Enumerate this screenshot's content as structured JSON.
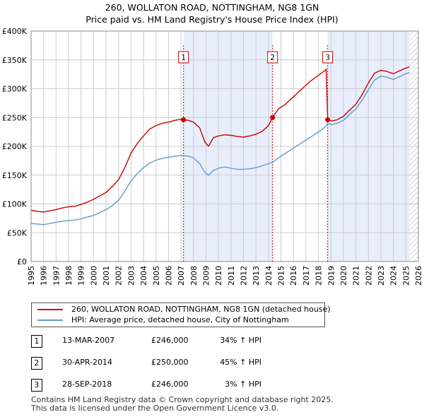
{
  "header": {
    "line1": "260, WOLLATON ROAD, NOTTINGHAM, NG8 1GN",
    "line2": "Price paid vs. HM Land Registry's House Price Index (HPI)"
  },
  "colors": {
    "property": "#cc0000",
    "hpi": "#6699cc",
    "shade": "#e8eefb",
    "grid": "#cccccc",
    "hatch": "#aaaaaa"
  },
  "legend": {
    "property_label": "260, WOLLATON ROAD, NOTTINGHAM, NG8 1GN (detached house)",
    "hpi_label": "HPI: Average price, detached house, City of Nottingham"
  },
  "sales": [
    {
      "num": "1",
      "date": "13-MAR-2007",
      "price": "£246,000",
      "hpi": "34% ↑ HPI"
    },
    {
      "num": "2",
      "date": "30-APR-2014",
      "price": "£250,000",
      "hpi": "45% ↑ HPI"
    },
    {
      "num": "3",
      "date": "28-SEP-2018",
      "price": "£246,000",
      "hpi": "3% ↑ HPI"
    }
  ],
  "footer": {
    "line1": "Contains HM Land Registry data © Crown copyright and database right 2025.",
    "line2": "This data is licensed under the Open Government Licence v3.0."
  },
  "chart_data": {
    "type": "line",
    "title": "260, WOLLATON ROAD, NOTTINGHAM, NG8 1GN",
    "subtitle": "Price paid vs. HM Land Registry's House Price Index (HPI)",
    "xlim": [
      1995,
      2026
    ],
    "ylim": [
      0,
      400000
    ],
    "x_ticks": [
      "1995",
      "1996",
      "1997",
      "1998",
      "1999",
      "2000",
      "2001",
      "2002",
      "2003",
      "2004",
      "2005",
      "2006",
      "2007",
      "2008",
      "2009",
      "2010",
      "2011",
      "2012",
      "2013",
      "2014",
      "2015",
      "2016",
      "2017",
      "2018",
      "2019",
      "2020",
      "2021",
      "2022",
      "2023",
      "2024",
      "2025",
      "2026"
    ],
    "y_ticks": [
      {
        "value": 0,
        "label": "£0"
      },
      {
        "value": 50000,
        "label": "£50K"
      },
      {
        "value": 100000,
        "label": "£100K"
      },
      {
        "value": 150000,
        "label": "£150K"
      },
      {
        "value": 200000,
        "label": "£200K"
      },
      {
        "value": 250000,
        "label": "£250K"
      },
      {
        "value": 300000,
        "label": "£300K"
      },
      {
        "value": 350000,
        "label": "£350K"
      },
      {
        "value": 400000,
        "label": "£400K"
      }
    ],
    "shaded_ranges": [
      [
        2007.2,
        2014.33
      ],
      [
        2018.74,
        2025.3
      ]
    ],
    "future_from": 2025.3,
    "sale_markers": [
      {
        "label": "1",
        "x": 2007.2,
        "y": 246000
      },
      {
        "label": "2",
        "x": 2014.33,
        "y": 250000
      },
      {
        "label": "3",
        "x": 2018.74,
        "y": 246000
      }
    ],
    "series": [
      {
        "name": "260, WOLLATON ROAD, NOTTINGHAM, NG8 1GN (detached house)",
        "color": "#cc0000",
        "points": [
          [
            1995.0,
            89000
          ],
          [
            1995.5,
            87000
          ],
          [
            1996.0,
            86000
          ],
          [
            1996.5,
            88000
          ],
          [
            1997.0,
            90000
          ],
          [
            1997.5,
            93000
          ],
          [
            1998.0,
            95000
          ],
          [
            1998.5,
            96000
          ],
          [
            1999.0,
            99000
          ],
          [
            1999.5,
            103000
          ],
          [
            2000.0,
            108000
          ],
          [
            2000.5,
            114000
          ],
          [
            2001.0,
            120000
          ],
          [
            2001.5,
            130000
          ],
          [
            2002.0,
            142000
          ],
          [
            2002.5,
            163000
          ],
          [
            2003.0,
            188000
          ],
          [
            2003.5,
            205000
          ],
          [
            2004.0,
            218000
          ],
          [
            2004.5,
            230000
          ],
          [
            2005.0,
            236000
          ],
          [
            2005.5,
            240000
          ],
          [
            2006.0,
            242000
          ],
          [
            2006.5,
            245000
          ],
          [
            2007.0,
            247000
          ],
          [
            2007.2,
            246000
          ],
          [
            2007.6,
            245000
          ],
          [
            2008.0,
            242000
          ],
          [
            2008.5,
            232000
          ],
          [
            2008.9,
            208000
          ],
          [
            2009.2,
            200000
          ],
          [
            2009.6,
            215000
          ],
          [
            2010.0,
            218000
          ],
          [
            2010.5,
            220000
          ],
          [
            2011.0,
            219000
          ],
          [
            2011.5,
            217000
          ],
          [
            2012.0,
            216000
          ],
          [
            2012.5,
            218000
          ],
          [
            2013.0,
            221000
          ],
          [
            2013.5,
            226000
          ],
          [
            2014.0,
            236000
          ],
          [
            2014.33,
            250000
          ],
          [
            2014.8,
            265000
          ],
          [
            2015.3,
            272000
          ],
          [
            2015.8,
            282000
          ],
          [
            2016.3,
            292000
          ],
          [
            2016.8,
            302000
          ],
          [
            2017.3,
            312000
          ],
          [
            2017.8,
            320000
          ],
          [
            2018.3,
            328000
          ],
          [
            2018.55,
            332000
          ],
          [
            2018.62,
            334000
          ],
          [
            2018.74,
            246000
          ],
          [
            2019.1,
            244000
          ],
          [
            2019.5,
            246000
          ],
          [
            2020.0,
            252000
          ],
          [
            2020.5,
            263000
          ],
          [
            2021.0,
            273000
          ],
          [
            2021.5,
            290000
          ],
          [
            2022.0,
            310000
          ],
          [
            2022.5,
            327000
          ],
          [
            2023.0,
            332000
          ],
          [
            2023.5,
            330000
          ],
          [
            2024.0,
            326000
          ],
          [
            2024.5,
            331000
          ],
          [
            2025.0,
            336000
          ],
          [
            2025.3,
            338000
          ]
        ]
      },
      {
        "name": "HPI: Average price, detached house, City of Nottingham",
        "color": "#6699cc",
        "points": [
          [
            1995.0,
            66000
          ],
          [
            1995.5,
            65000
          ],
          [
            1996.0,
            64000
          ],
          [
            1996.5,
            66000
          ],
          [
            1997.0,
            68000
          ],
          [
            1997.5,
            70000
          ],
          [
            1998.0,
            71000
          ],
          [
            1998.5,
            72000
          ],
          [
            1999.0,
            74000
          ],
          [
            1999.5,
            77000
          ],
          [
            2000.0,
            80000
          ],
          [
            2000.5,
            85000
          ],
          [
            2001.0,
            90000
          ],
          [
            2001.5,
            97000
          ],
          [
            2002.0,
            106000
          ],
          [
            2002.5,
            122000
          ],
          [
            2003.0,
            140000
          ],
          [
            2003.5,
            153000
          ],
          [
            2004.0,
            163000
          ],
          [
            2004.5,
            171000
          ],
          [
            2005.0,
            176000
          ],
          [
            2005.5,
            179000
          ],
          [
            2006.0,
            181000
          ],
          [
            2006.5,
            183000
          ],
          [
            2007.0,
            184000
          ],
          [
            2007.2,
            184000
          ],
          [
            2007.6,
            183000
          ],
          [
            2008.0,
            180000
          ],
          [
            2008.5,
            170000
          ],
          [
            2008.9,
            155000
          ],
          [
            2009.2,
            150000
          ],
          [
            2009.6,
            158000
          ],
          [
            2010.0,
            162000
          ],
          [
            2010.5,
            164000
          ],
          [
            2011.0,
            162000
          ],
          [
            2011.5,
            160000
          ],
          [
            2012.0,
            160000
          ],
          [
            2012.5,
            161000
          ],
          [
            2013.0,
            163000
          ],
          [
            2013.5,
            166000
          ],
          [
            2014.0,
            170000
          ],
          [
            2014.33,
            172000
          ],
          [
            2014.8,
            180000
          ],
          [
            2015.3,
            187000
          ],
          [
            2015.8,
            194000
          ],
          [
            2016.3,
            201000
          ],
          [
            2016.8,
            208000
          ],
          [
            2017.3,
            215000
          ],
          [
            2017.8,
            222000
          ],
          [
            2018.3,
            229000
          ],
          [
            2018.74,
            239000
          ],
          [
            2019.1,
            238000
          ],
          [
            2019.5,
            240000
          ],
          [
            2020.0,
            245000
          ],
          [
            2020.5,
            255000
          ],
          [
            2021.0,
            265000
          ],
          [
            2021.5,
            280000
          ],
          [
            2022.0,
            298000
          ],
          [
            2022.5,
            315000
          ],
          [
            2023.0,
            322000
          ],
          [
            2023.5,
            320000
          ],
          [
            2024.0,
            316000
          ],
          [
            2024.5,
            321000
          ],
          [
            2025.0,
            326000
          ],
          [
            2025.3,
            328000
          ]
        ]
      }
    ]
  }
}
